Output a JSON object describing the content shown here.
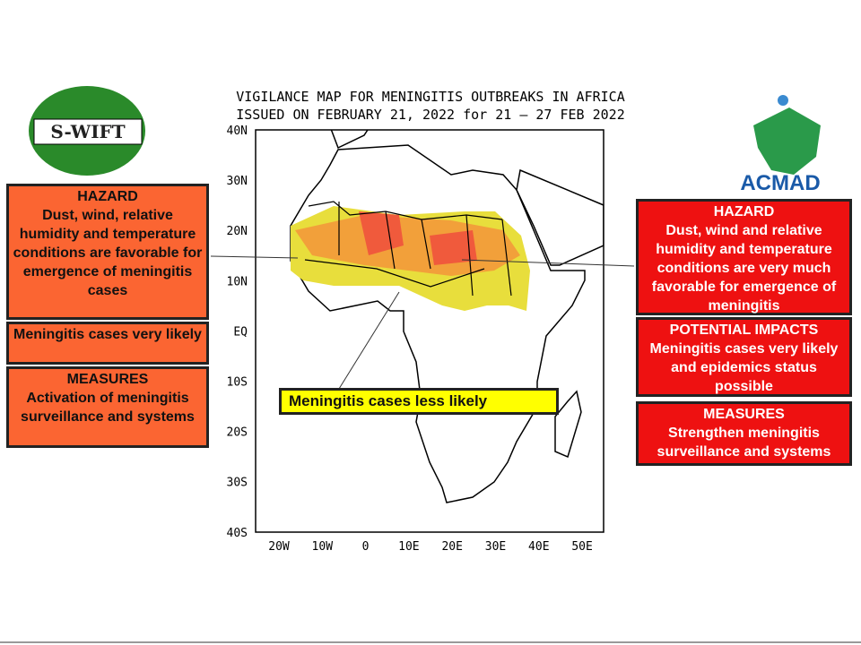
{
  "header": {
    "title_line1": "VIGILANCE MAP FOR MENINGITIS OUTBREAKS IN AFRICA",
    "title_line2": "ISSUED ON FEBRUARY 21, 2022 for 21 – 27 FEB 2022"
  },
  "logos": {
    "left": "S-WIFT",
    "right": "ACMAD"
  },
  "map": {
    "lat_labels": [
      "40N",
      "30N",
      "20N",
      "10N",
      "EQ",
      "10S",
      "20S",
      "30S",
      "40S"
    ],
    "lon_labels": [
      "20W",
      "10W",
      "0",
      "10E",
      "20E",
      "30E",
      "40E",
      "50E"
    ],
    "annotation": "Meningitis cases less likely"
  },
  "left_panel": {
    "hazard_title": "HAZARD",
    "hazard_text": "Dust, wind, relative humidity and temperature conditions are favorable for emergence of meningitis cases",
    "impact_text": "Meningitis cases very likely",
    "measures_title": "MEASURES",
    "measures_text": "Activation of meningitis surveillance and systems"
  },
  "right_panel": {
    "hazard_title": "HAZARD",
    "hazard_text": "Dust, wind and relative humidity and temperature conditions are very much favorable for emergence of meningitis",
    "impact_title": "POTENTIAL IMPACTS",
    "impact_text": "Meningitis cases very likely and epidemics status possible",
    "measures_title": "MEASURES",
    "measures_text": "Strengthen meningitis surveillance and systems"
  }
}
